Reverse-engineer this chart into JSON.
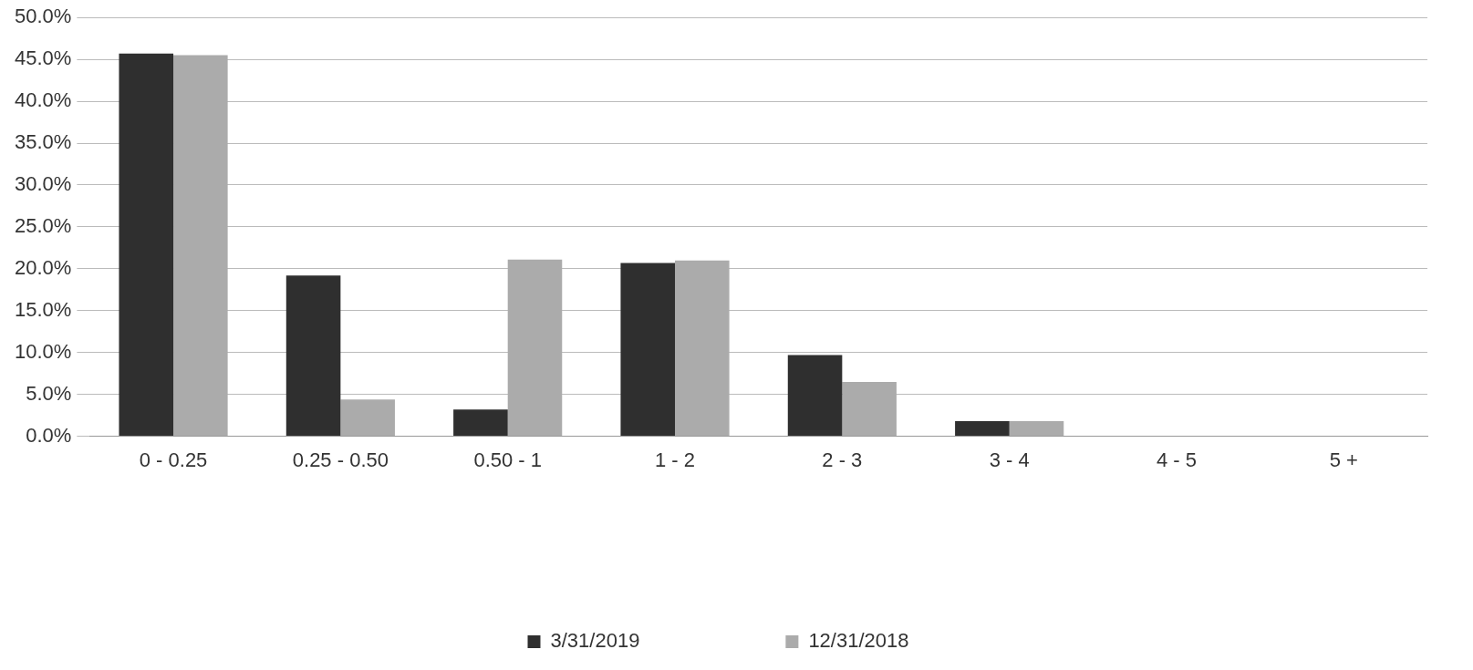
{
  "chart_data": {
    "type": "bar",
    "categories": [
      "0 - 0.25",
      "0.25 - 0.50",
      "0.50 - 1",
      "1 - 2",
      "2 - 3",
      "3 - 4",
      "4 - 5",
      "5 +"
    ],
    "series": [
      {
        "name": "3/31/2019",
        "color": "#2f2f2f",
        "values": [
          45.7,
          19.2,
          3.2,
          20.7,
          9.7,
          1.8,
          0,
          0
        ]
      },
      {
        "name": "12/31/2018",
        "color": "#ababab",
        "values": [
          45.5,
          4.4,
          21.1,
          21.0,
          6.5,
          1.8,
          0,
          0
        ]
      }
    ],
    "ylim": [
      0,
      50
    ],
    "yticks": [
      {
        "value": 0,
        "label": "0.0%"
      },
      {
        "value": 5,
        "label": "5.0%"
      },
      {
        "value": 10,
        "label": "10.0%"
      },
      {
        "value": 15,
        "label": "15.0%"
      },
      {
        "value": 20,
        "label": "20.0%"
      },
      {
        "value": 25,
        "label": "25.0%"
      },
      {
        "value": 30,
        "label": "30.0%"
      },
      {
        "value": 35,
        "label": "35.0%"
      },
      {
        "value": 40,
        "label": "40.0%"
      },
      {
        "value": 45,
        "label": "45.0%"
      },
      {
        "value": 50,
        "label": "50.0%"
      }
    ],
    "grid": "y",
    "legend": "bottom"
  }
}
